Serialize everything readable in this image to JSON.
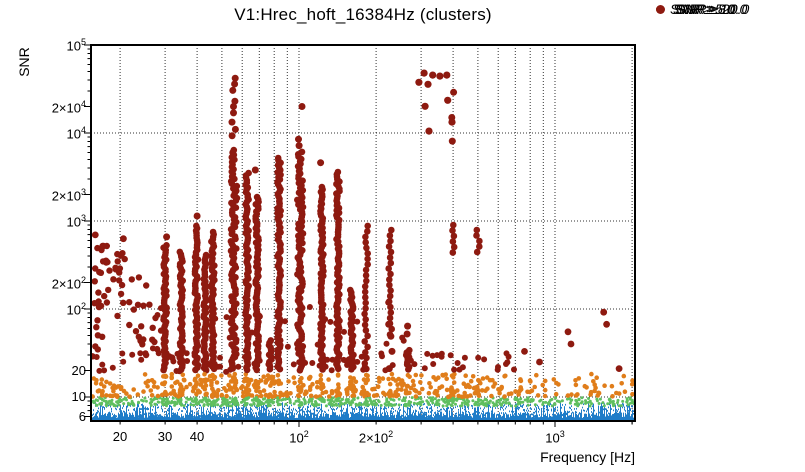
{
  "chart_data": {
    "type": "scatter",
    "title": "V1:Hrec_hoft_16384Hz (clusters)",
    "xlabel": "Frequency [Hz]",
    "ylabel": "SNR",
    "xscale": "log",
    "yscale": "log",
    "xlim": [
      15.4,
      2052
    ],
    "ylim": [
      5.3,
      100000
    ],
    "grid": {
      "style": "dotted",
      "x_values": [
        20,
        30,
        40,
        50,
        60,
        70,
        80,
        90,
        100,
        200,
        300,
        400,
        500,
        600,
        700,
        800,
        900,
        1000,
        2000
      ],
      "y_values": [
        10,
        100,
        1000,
        10000,
        100000
      ]
    },
    "x_ticks": [
      {
        "v": 20,
        "base": "20"
      },
      {
        "v": 30,
        "base": "30"
      },
      {
        "v": 40,
        "base": "40"
      },
      {
        "v": 100,
        "base": "10",
        "exp": "2"
      },
      {
        "v": 200,
        "base": "2×10",
        "exp": "2"
      },
      {
        "v": 1000,
        "base": "10",
        "exp": "3"
      }
    ],
    "y_ticks": [
      {
        "v": 100000,
        "base": "10",
        "exp": "5"
      },
      {
        "v": 20000,
        "base": "2×10",
        "exp": "4"
      },
      {
        "v": 10000,
        "base": "10",
        "exp": "4"
      },
      {
        "v": 2000,
        "base": "2×10",
        "exp": "3"
      },
      {
        "v": 1000,
        "base": "10",
        "exp": "3"
      },
      {
        "v": 200,
        "base": "2×10",
        "exp": "2"
      },
      {
        "v": 100,
        "base": "10",
        "exp": "2"
      },
      {
        "v": 20,
        "base": "20"
      },
      {
        "v": 10,
        "base": "10"
      },
      {
        "v": 6,
        "base": "6"
      }
    ],
    "legend": {
      "position": "right",
      "entries": [
        {
          "label": "SNR ≥ 5.0",
          "color": "#1E7CC8",
          "marker_radius": 1
        },
        {
          "label": "SNR ≥ 8.0",
          "color": "#5FBF5F",
          "marker_radius": 2.5
        },
        {
          "label": "SNR ≥ 10.0",
          "color": "#E07D1A",
          "marker_radius": 3.5
        },
        {
          "label": "SNR ≥ 20.0",
          "color": "#8E1A10",
          "marker_radius": 4.5
        }
      ]
    },
    "series": [
      {
        "name": "SNR ≥ 5.0",
        "color": "#1E7CC8",
        "marker_px": 1,
        "kind": "dense_band",
        "freq_range": [
          15.4,
          2052
        ],
        "snr_range": [
          5.3,
          8
        ],
        "description": "continuous dense speckle band across all frequencies, solid near SNR 5.3-6.5",
        "approx_count": 9000
      },
      {
        "name": "SNR ≥ 8.0",
        "color": "#5FBF5F",
        "marker_px": 3,
        "kind": "band",
        "freq_range": [
          15.4,
          2052
        ],
        "snr_range": [
          8,
          10
        ],
        "approx_count": 700
      },
      {
        "name": "SNR ≥ 10.0",
        "color": "#E07D1A",
        "marker_px": 5,
        "kind": "band",
        "freq_range": [
          15.4,
          900
        ],
        "snr_range": [
          10,
          20
        ],
        "sparse_above_freq": 760,
        "approx_count": 500
      },
      {
        "name": "SNR ≥ 20.0",
        "color": "#8E1A10",
        "marker_px": 7,
        "kind": "clusters",
        "low_freq_cloud": {
          "freq_range": [
            15.4,
            29
          ],
          "snr_range": [
            19,
            650
          ],
          "count": 55,
          "trend": "snr decreases with frequency"
        },
        "isolated_points": [
          [
            16.0,
            695
          ],
          [
            20.6,
            630
          ]
        ],
        "columns": [
          {
            "freq": 30.0,
            "snr_base": 20,
            "snr_top": 530,
            "extra_snr": [
              660
            ]
          },
          {
            "freq": 34.7,
            "snr_base": 20,
            "snr_top": 445
          },
          {
            "freq": 39.7,
            "snr_base": 20,
            "snr_top": 880,
            "extra_snr": [
              1140
            ]
          },
          {
            "freq": 42.9,
            "snr_base": 20,
            "snr_top": 410
          },
          {
            "freq": 46.1,
            "snr_base": 20,
            "snr_top": 750
          },
          {
            "freq": 55.7,
            "snr_base": 20,
            "snr_top": 6400,
            "wide": true,
            "extra_snr": [
              42000,
              36000,
              30500,
              23000,
              20000,
              16900,
              13300,
              11000,
              9300
            ]
          },
          {
            "freq": 62.7,
            "snr_base": 20,
            "snr_top": 3500
          },
          {
            "freq": 68.7,
            "snr_base": 20,
            "snr_top": 1870,
            "extra_snr": [
              3800
            ]
          },
          {
            "freq": 77.0,
            "snr_base": 20,
            "snr_top": 44
          },
          {
            "freq": 83.6,
            "snr_base": 20,
            "snr_top": 5200
          },
          {
            "freq": 101.0,
            "snr_base": 20,
            "snr_top": 6100,
            "wide": true,
            "extra_snr": [
              20000,
              8500,
              7200
            ]
          },
          {
            "freq": 123.0,
            "snr_base": 20,
            "snr_top": 2430,
            "extra_snr": [
              4600
            ]
          },
          {
            "freq": 142.0,
            "snr_base": 20,
            "snr_top": 3600
          },
          {
            "freq": 161.0,
            "snr_base": 20,
            "snr_top": 164
          },
          {
            "freq": 183.0,
            "snr_base": 20,
            "snr_top": 880,
            "sparse": true
          },
          {
            "freq": 227.0,
            "snr_base": 45,
            "snr_top": 790,
            "sparse": true,
            "extra_snr": [
              67,
              49,
              33,
              21
            ]
          },
          {
            "freq": 266.0,
            "snr_base": 20,
            "snr_top": 34,
            "extra_snr": [
              64,
              52
            ]
          },
          {
            "freq": 400.0,
            "snr_base": 380,
            "snr_top": 900,
            "sparse": true,
            "extra_snr": [
              29000,
              15000,
              8100
            ]
          },
          {
            "freq": 500.0,
            "snr_base": 420,
            "snr_top": 790,
            "sparse": true
          }
        ],
        "high_snr_cluster_points": [
          [
            308,
            48000
          ],
          [
            333,
            45500
          ],
          [
            355,
            44300
          ],
          [
            378,
            45500
          ],
          [
            294,
            37700
          ],
          [
            319,
            35800
          ],
          [
            311,
            20100
          ],
          [
            381,
            23500
          ],
          [
            396,
            13300
          ],
          [
            322,
            10500
          ]
        ],
        "right_side_points": [
          [
            1124,
            55
          ],
          [
            1155,
            40
          ],
          [
            1550,
            92
          ],
          [
            1590,
            67
          ],
          [
            1780,
            21
          ],
          [
            760,
            33
          ],
          [
            870,
            25
          ]
        ],
        "floor_scatter": {
          "freq_range": [
            15.4,
            760
          ],
          "snr_range": [
            19.5,
            32
          ],
          "count": 85
        },
        "mid_scatter": {
          "freq_range": [
            26,
            300
          ],
          "snr_range": [
            32,
            127
          ],
          "count": 26
        }
      }
    ]
  }
}
